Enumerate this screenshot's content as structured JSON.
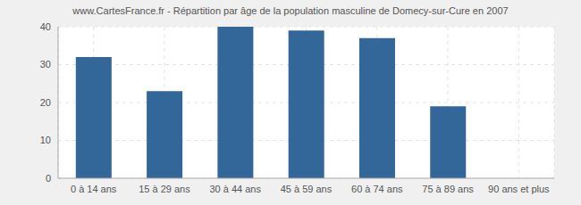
{
  "chart_data": {
    "type": "bar",
    "title": "www.CartesFrance.fr - Répartition par âge de la population masculine de Domecy-sur-Cure en 2007",
    "categories": [
      "0 à 14 ans",
      "15 à 29 ans",
      "30 à 44 ans",
      "45 à 59 ans",
      "60 à 74 ans",
      "75 à 89 ans",
      "90 ans et plus"
    ],
    "values": [
      32,
      23,
      40,
      39,
      37,
      19,
      0
    ],
    "color": "#336699",
    "ylim": [
      0,
      40
    ],
    "yticks": [
      0,
      10,
      20,
      30,
      40
    ],
    "grid": true
  }
}
